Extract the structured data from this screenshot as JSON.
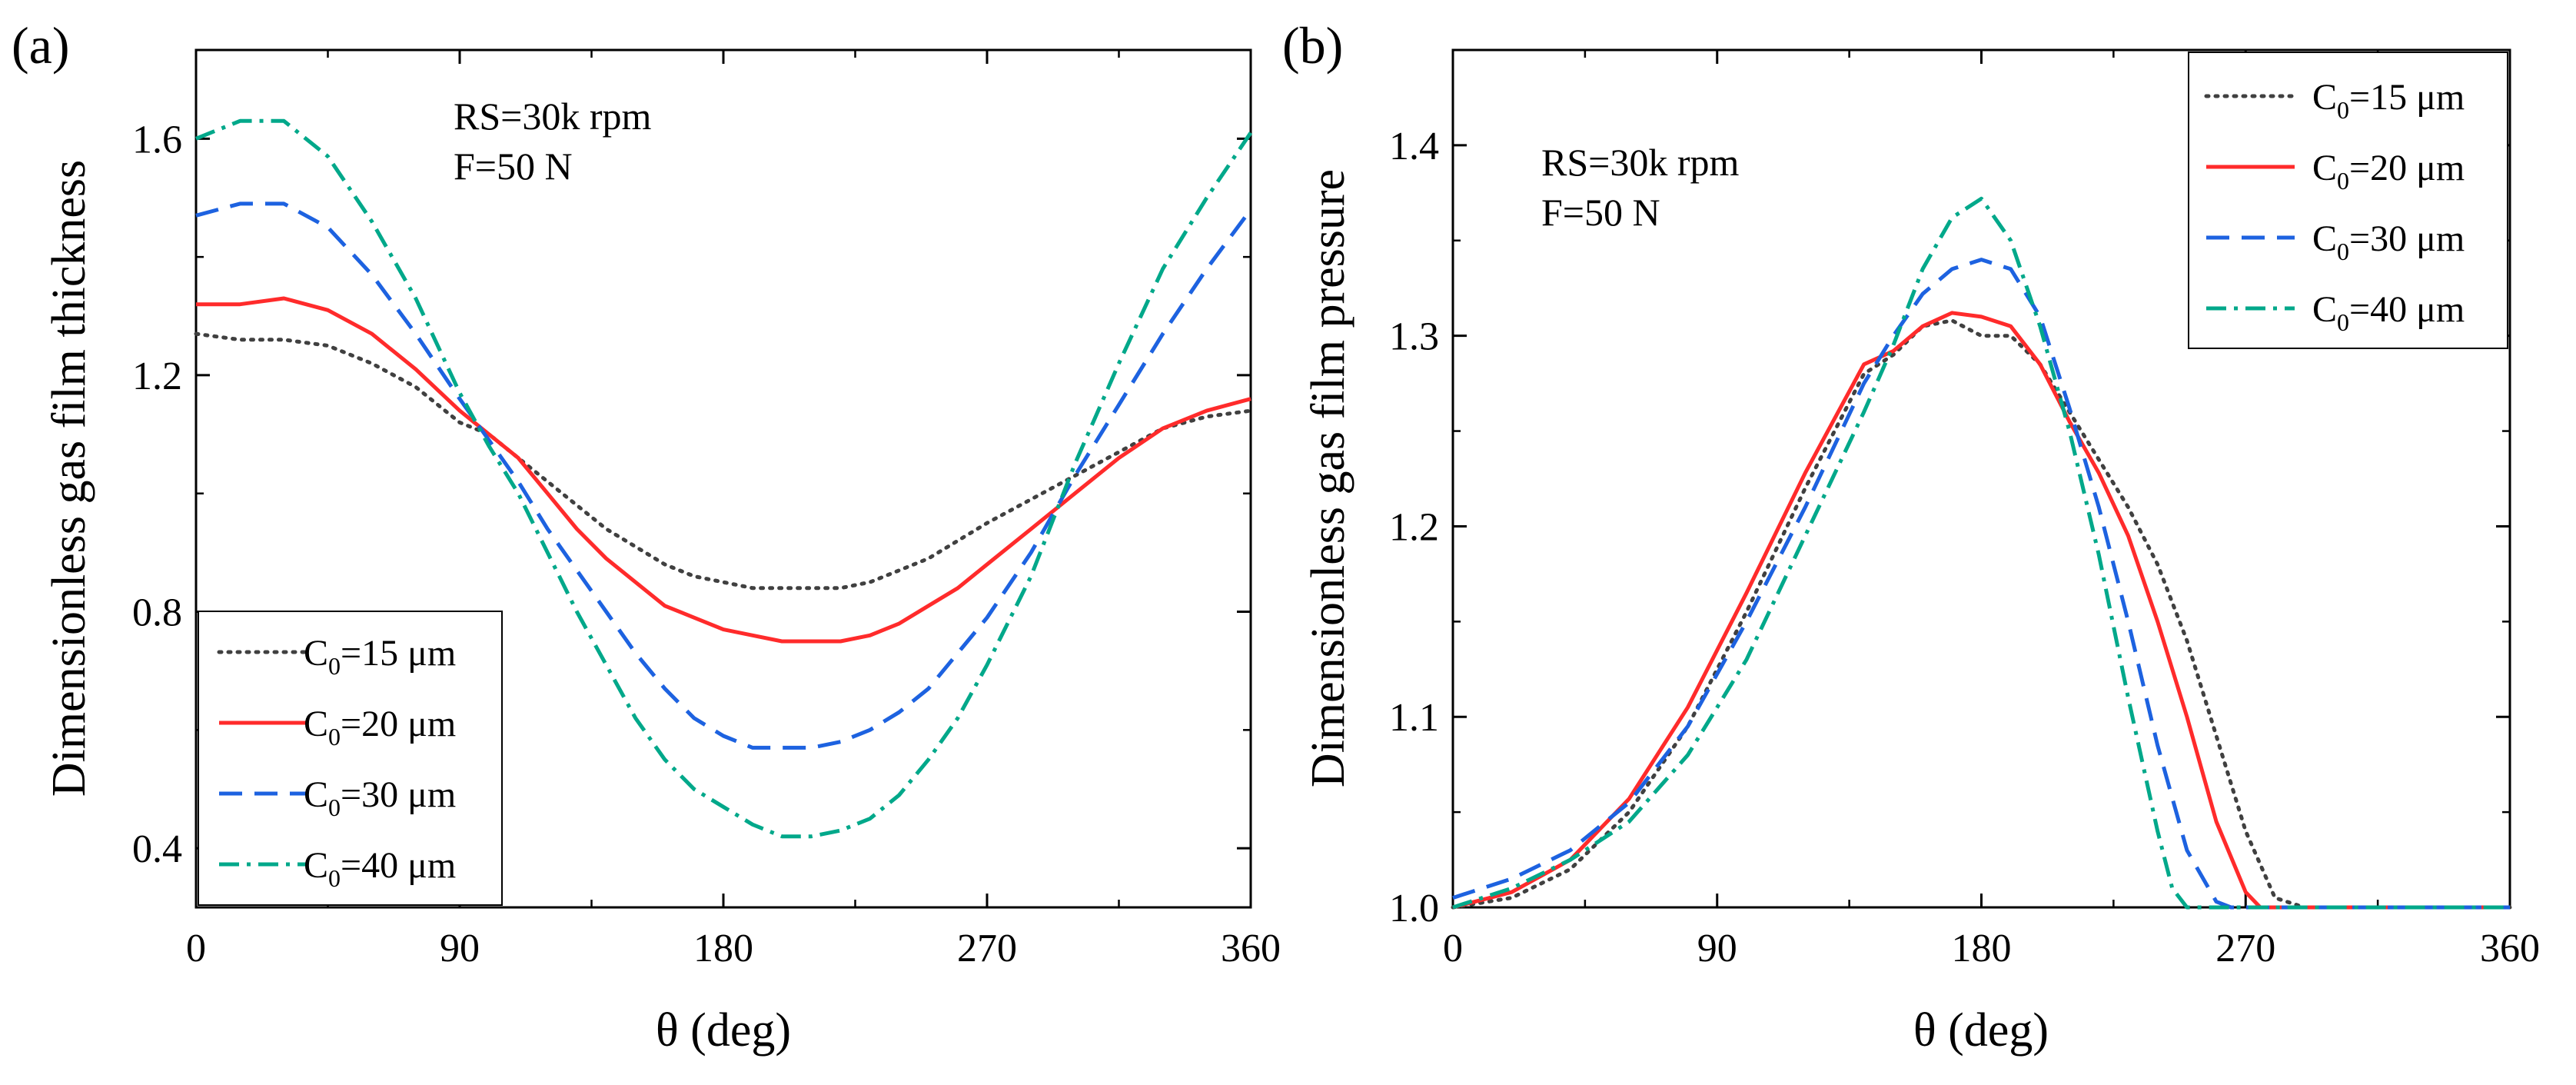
{
  "chart_data": [
    {
      "panel_label": "(a)",
      "type": "line",
      "title": "",
      "xlabel": "θ (deg)",
      "ylabel": "Dimensionless gas film thickness",
      "xlim": [
        0,
        360
      ],
      "ylim": [
        0.3,
        1.75
      ],
      "xticks": [
        0,
        90,
        180,
        270,
        360
      ],
      "yticks": [
        0.4,
        0.8,
        1.2,
        1.6
      ],
      "xtick_labels": [
        "0",
        "90",
        "180",
        "270",
        "360"
      ],
      "ytick_labels": [
        "0.4",
        "0.8",
        "1.2",
        "1.6"
      ],
      "annotation": [
        "RS=30k rpm",
        "F=50 N"
      ],
      "legend_position": "bottom-left",
      "grid": false,
      "series": [
        {
          "name": "C0=15 μm",
          "legend_main": "C",
          "legend_sub": "0",
          "legend_rest": "=15 μm",
          "color": "#404040",
          "dash": "dot",
          "x": [
            0,
            15,
            30,
            45,
            60,
            75,
            90,
            100,
            110,
            120,
            130,
            140,
            150,
            160,
            170,
            180,
            190,
            200,
            210,
            220,
            230,
            240,
            250,
            260,
            270,
            285,
            300,
            315,
            330,
            345,
            360
          ],
          "y": [
            1.27,
            1.26,
            1.26,
            1.25,
            1.22,
            1.18,
            1.12,
            1.1,
            1.06,
            1.02,
            0.98,
            0.94,
            0.91,
            0.88,
            0.86,
            0.85,
            0.84,
            0.84,
            0.84,
            0.84,
            0.85,
            0.87,
            0.89,
            0.92,
            0.95,
            0.99,
            1.03,
            1.07,
            1.11,
            1.13,
            1.14
          ]
        },
        {
          "name": "C0=20 μm",
          "legend_main": "C",
          "legend_sub": "0",
          "legend_rest": "=20 μm",
          "color": "#ff2b2b",
          "dash": "solid",
          "x": [
            0,
            15,
            30,
            45,
            60,
            75,
            90,
            100,
            110,
            120,
            130,
            140,
            150,
            160,
            170,
            180,
            190,
            200,
            210,
            220,
            230,
            240,
            250,
            260,
            270,
            285,
            300,
            315,
            330,
            345,
            360
          ],
          "y": [
            1.32,
            1.32,
            1.33,
            1.31,
            1.27,
            1.21,
            1.14,
            1.1,
            1.06,
            1.0,
            0.94,
            0.89,
            0.85,
            0.81,
            0.79,
            0.77,
            0.76,
            0.75,
            0.75,
            0.75,
            0.76,
            0.78,
            0.81,
            0.84,
            0.88,
            0.94,
            1.0,
            1.06,
            1.11,
            1.14,
            1.16
          ]
        },
        {
          "name": "C0=30 μm",
          "legend_main": "C",
          "legend_sub": "0",
          "legend_rest": "=30 μm",
          "color": "#1d62e0",
          "dash": "dash",
          "x": [
            0,
            15,
            30,
            45,
            60,
            75,
            90,
            100,
            110,
            120,
            130,
            140,
            150,
            160,
            170,
            180,
            190,
            200,
            210,
            220,
            230,
            240,
            250,
            260,
            270,
            285,
            300,
            315,
            330,
            345,
            360
          ],
          "y": [
            1.47,
            1.49,
            1.49,
            1.45,
            1.37,
            1.27,
            1.16,
            1.09,
            1.02,
            0.94,
            0.87,
            0.8,
            0.73,
            0.67,
            0.62,
            0.59,
            0.57,
            0.57,
            0.57,
            0.58,
            0.6,
            0.63,
            0.67,
            0.73,
            0.79,
            0.9,
            1.03,
            1.15,
            1.27,
            1.38,
            1.48
          ]
        },
        {
          "name": "C0=40 μm",
          "legend_main": "C",
          "legend_sub": "0",
          "legend_rest": "=40 μm",
          "color": "#00a88a",
          "dash": "dashdot",
          "x": [
            0,
            15,
            30,
            45,
            60,
            75,
            90,
            100,
            110,
            120,
            130,
            140,
            150,
            160,
            170,
            180,
            190,
            200,
            210,
            220,
            230,
            240,
            250,
            260,
            270,
            285,
            300,
            315,
            330,
            345,
            360
          ],
          "y": [
            1.6,
            1.63,
            1.63,
            1.57,
            1.46,
            1.33,
            1.17,
            1.08,
            1.0,
            0.9,
            0.8,
            0.71,
            0.62,
            0.55,
            0.5,
            0.47,
            0.44,
            0.42,
            0.42,
            0.43,
            0.45,
            0.49,
            0.55,
            0.62,
            0.71,
            0.86,
            1.05,
            1.22,
            1.38,
            1.5,
            1.61
          ]
        }
      ]
    },
    {
      "panel_label": "(b)",
      "type": "line",
      "title": "",
      "xlabel": "θ (deg)",
      "ylabel": "Dimensionless gas film pressure",
      "xlim": [
        0,
        360
      ],
      "ylim": [
        1.0,
        1.45
      ],
      "xticks": [
        0,
        90,
        180,
        270,
        360
      ],
      "yticks": [
        1.0,
        1.1,
        1.2,
        1.3,
        1.4
      ],
      "xtick_labels": [
        "0",
        "90",
        "180",
        "270",
        "360"
      ],
      "ytick_labels": [
        "1.0",
        "1.1",
        "1.2",
        "1.3",
        "1.4"
      ],
      "annotation": [
        "RS=30k rpm",
        "F=50 N"
      ],
      "legend_position": "top-right",
      "grid": false,
      "series": [
        {
          "name": "C0=15 μm",
          "legend_main": "C",
          "legend_sub": "0",
          "legend_rest": "=15 μm",
          "color": "#404040",
          "dash": "dot",
          "x": [
            0,
            20,
            40,
            60,
            80,
            100,
            120,
            140,
            150,
            160,
            170,
            180,
            190,
            200,
            210,
            220,
            230,
            240,
            250,
            260,
            270,
            280,
            290,
            300,
            360
          ],
          "y": [
            1.0,
            1.005,
            1.02,
            1.05,
            1.095,
            1.155,
            1.22,
            1.28,
            1.29,
            1.305,
            1.308,
            1.3,
            1.3,
            1.285,
            1.26,
            1.235,
            1.21,
            1.18,
            1.14,
            1.09,
            1.04,
            1.005,
            1.0,
            1.0,
            1.0
          ]
        },
        {
          "name": "C0=20 μm",
          "legend_main": "C",
          "legend_sub": "0",
          "legend_rest": "=20 μm",
          "color": "#ff2b2b",
          "dash": "solid",
          "x": [
            0,
            20,
            40,
            60,
            80,
            100,
            120,
            140,
            150,
            160,
            170,
            180,
            190,
            200,
            210,
            220,
            230,
            240,
            250,
            260,
            270,
            275,
            280,
            360
          ],
          "y": [
            1.0,
            1.008,
            1.025,
            1.057,
            1.105,
            1.165,
            1.228,
            1.285,
            1.292,
            1.305,
            1.312,
            1.31,
            1.305,
            1.285,
            1.255,
            1.228,
            1.195,
            1.15,
            1.1,
            1.045,
            1.008,
            1.0,
            1.0,
            1.0
          ]
        },
        {
          "name": "C0=30 μm",
          "legend_main": "C",
          "legend_sub": "0",
          "legend_rest": "=30 μm",
          "color": "#1d62e0",
          "dash": "dash",
          "x": [
            0,
            20,
            40,
            60,
            80,
            100,
            120,
            140,
            150,
            160,
            170,
            180,
            190,
            200,
            210,
            220,
            230,
            240,
            250,
            260,
            265,
            360
          ],
          "y": [
            1.005,
            1.015,
            1.03,
            1.055,
            1.095,
            1.15,
            1.21,
            1.275,
            1.3,
            1.322,
            1.335,
            1.34,
            1.335,
            1.31,
            1.262,
            1.21,
            1.15,
            1.085,
            1.03,
            1.003,
            1.0,
            1.0
          ]
        },
        {
          "name": "C0=40 μm",
          "legend_main": "C",
          "legend_sub": "0",
          "legend_rest": "=40 μm",
          "color": "#00a88a",
          "dash": "dashdot",
          "x": [
            0,
            20,
            40,
            60,
            80,
            100,
            120,
            140,
            150,
            160,
            170,
            180,
            190,
            200,
            210,
            220,
            230,
            240,
            245,
            250,
            360
          ],
          "y": [
            1.0,
            1.01,
            1.025,
            1.045,
            1.08,
            1.13,
            1.195,
            1.26,
            1.295,
            1.335,
            1.362,
            1.372,
            1.35,
            1.305,
            1.25,
            1.185,
            1.11,
            1.04,
            1.01,
            1.0,
            1.0
          ]
        }
      ]
    }
  ]
}
